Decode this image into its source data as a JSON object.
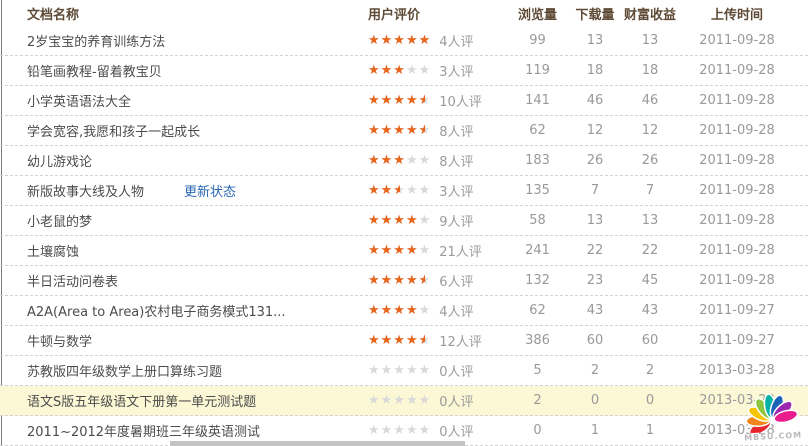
{
  "table": {
    "headers": {
      "name": "文档名称",
      "rating": "用户评价",
      "views": "浏览量",
      "downloads": "下载量",
      "income": "财富收益",
      "time": "上传时间"
    },
    "rows": [
      {
        "name": "2岁宝宝的养育训练方法",
        "rating": 5,
        "reviews": "4人评",
        "views": "99",
        "downloads": "13",
        "income": "13",
        "time": "2011-09-28"
      },
      {
        "name": "铅笔画教程-留着教宝贝",
        "rating": 3,
        "reviews": "3人评",
        "views": "119",
        "downloads": "18",
        "income": "18",
        "time": "2011-09-28"
      },
      {
        "name": "小学英语语法大全",
        "rating": 4.5,
        "reviews": "10人评",
        "views": "141",
        "downloads": "46",
        "income": "46",
        "time": "2011-09-28"
      },
      {
        "name": "学会宽容,我愿和孩子一起成长",
        "rating": 4.5,
        "reviews": "8人评",
        "views": "62",
        "downloads": "12",
        "income": "12",
        "time": "2011-09-28"
      },
      {
        "name": "幼儿游戏论",
        "rating": 3,
        "reviews": "8人评",
        "views": "183",
        "downloads": "26",
        "income": "26",
        "time": "2011-09-28"
      },
      {
        "name": "新版故事大线及人物",
        "link": "更新状态",
        "rating": 2.5,
        "reviews": "3人评",
        "views": "135",
        "downloads": "7",
        "income": "7",
        "time": "2011-09-28"
      },
      {
        "name": "小老鼠的梦",
        "rating": 4,
        "reviews": "9人评",
        "views": "58",
        "downloads": "13",
        "income": "13",
        "time": "2011-09-28"
      },
      {
        "name": "土壤腐蚀",
        "rating": 4,
        "reviews": "21人评",
        "views": "241",
        "downloads": "22",
        "income": "22",
        "time": "2011-09-28"
      },
      {
        "name": "半日活动问卷表",
        "rating": 4.5,
        "reviews": "6人评",
        "views": "132",
        "downloads": "23",
        "income": "45",
        "time": "2011-09-28"
      },
      {
        "name": "A2A(Area to Area)农村电子商务模式131...",
        "rating": 4,
        "reviews": "4人评",
        "views": "62",
        "downloads": "43",
        "income": "43",
        "time": "2011-09-27"
      },
      {
        "name": "牛顿与数学",
        "rating": 4.5,
        "reviews": "12人评",
        "views": "386",
        "downloads": "60",
        "income": "60",
        "time": "2011-09-27"
      },
      {
        "name": "苏教版四年级数学上册口算练习题",
        "rating": 0,
        "reviews": "0人评",
        "views": "5",
        "downloads": "2",
        "income": "2",
        "time": "2013-03-28"
      },
      {
        "name": "语文S版五年级语文下册第一单元测试题",
        "rating": 0,
        "reviews": "0人评",
        "views": "2",
        "downloads": "0",
        "income": "0",
        "time": "2013-03-28",
        "highlighted": true
      },
      {
        "name": "2011~2012年度暑期班三年级英语测试",
        "rating": 0,
        "reviews": "0人评",
        "views": "0",
        "downloads": "1",
        "income": "1",
        "time": "2013-03-28"
      }
    ]
  },
  "watermark": {
    "text": "MBSU.COM"
  },
  "colors": {
    "star_filled": "#e8641b",
    "star_empty": "#d9d9d9",
    "link_blue": "#2767b2",
    "highlight_row": "#fcf7d5",
    "header_text": "#5e4a36",
    "body_text": "#4c4c4c",
    "muted_number": "#999999"
  }
}
